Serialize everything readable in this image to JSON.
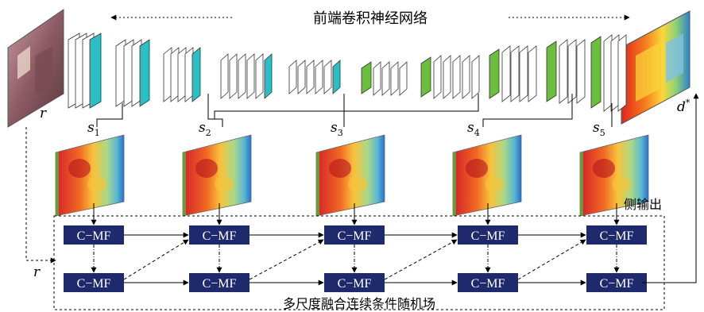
{
  "title": "前端卷积神经网络",
  "side_output_label": "侧输出",
  "crf_label": "多尺度融合连续条件随机场",
  "input_label": "r",
  "input_label_lower": "r",
  "output_label": "d",
  "output_superscript": "*",
  "side_outputs": [
    {
      "base": "s",
      "sub": "1"
    },
    {
      "base": "s",
      "sub": "2"
    },
    {
      "base": "s",
      "sub": "3"
    },
    {
      "base": "s",
      "sub": "4"
    },
    {
      "base": "s",
      "sub": "5"
    }
  ],
  "cmf_label": "C−MF",
  "colors": {
    "teal": "#2bbfc4",
    "green": "#6cbf3c",
    "navy": "#1f2a6d",
    "box_text": "#ffffff",
    "line": "#000000"
  }
}
